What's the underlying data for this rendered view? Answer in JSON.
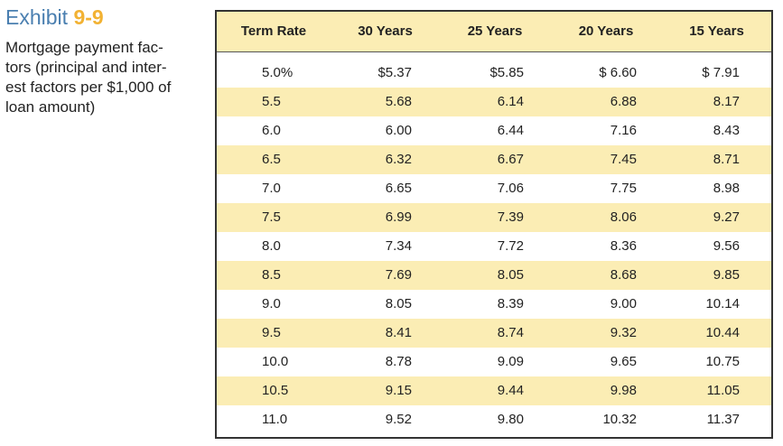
{
  "caption": {
    "label": "Exhibit",
    "number": "9-9",
    "description": "Mortgage payment fac-\ntors (principal and inter-\nest factors per $1,000 of\nloan amount)"
  },
  "table": {
    "headers": [
      "Term Rate",
      "30 Years",
      "25 Years",
      "20 Years",
      "15 Years"
    ],
    "rows": [
      [
        "5.0%",
        "$5.37",
        "$5.85",
        "$ 6.60",
        "$ 7.91"
      ],
      [
        "5.5",
        "5.68",
        "6.14",
        "6.88",
        "8.17"
      ],
      [
        "6.0",
        "6.00",
        "6.44",
        "7.16",
        "8.43"
      ],
      [
        "6.5",
        "6.32",
        "6.67",
        "7.45",
        "8.71"
      ],
      [
        "7.0",
        "6.65",
        "7.06",
        "7.75",
        "8.98"
      ],
      [
        "7.5",
        "6.99",
        "7.39",
        "8.06",
        "9.27"
      ],
      [
        "8.0",
        "7.34",
        "7.72",
        "8.36",
        "9.56"
      ],
      [
        "8.5",
        "7.69",
        "8.05",
        "8.68",
        "9.85"
      ],
      [
        "9.0",
        "8.05",
        "8.39",
        "9.00",
        "10.14"
      ],
      [
        "9.5",
        "8.41",
        "8.74",
        "9.32",
        "10.44"
      ],
      [
        "10.0",
        "8.78",
        "9.09",
        "9.65",
        "10.75"
      ],
      [
        "10.5",
        "9.15",
        "9.44",
        "9.98",
        "11.05"
      ],
      [
        "11.0",
        "9.52",
        "9.80",
        "10.32",
        "11.37"
      ]
    ]
  },
  "colors": {
    "exhibit_label": "#4a7fb0",
    "exhibit_number": "#f2b233",
    "row_highlight": "#fbedb4",
    "border": "#333333"
  }
}
